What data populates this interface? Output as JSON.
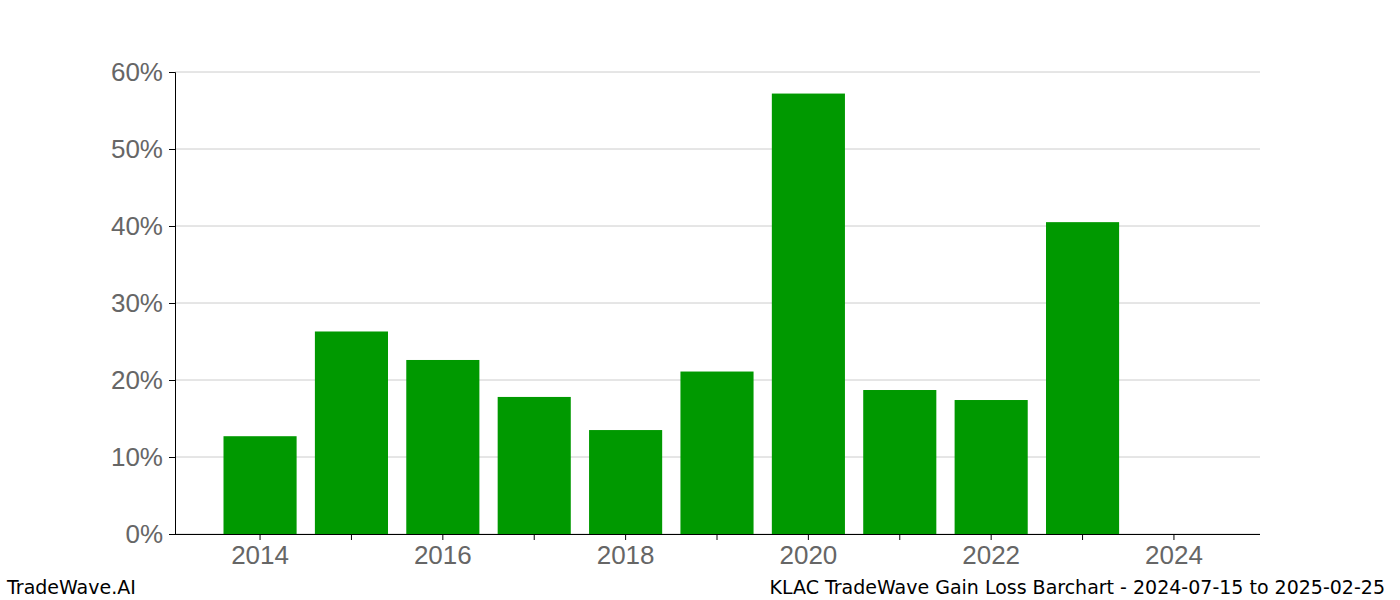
{
  "chart_data": {
    "type": "bar",
    "title": "KLAC TradeWave Gain Loss Barchart - 2024-07-15 to 2025-02-25",
    "annotations": [
      "TradeWave.AI"
    ],
    "categories": [
      "2014",
      null,
      "2016",
      null,
      "2018",
      null,
      "2020",
      null,
      "2022",
      null,
      "2024"
    ],
    "values": [
      12.7,
      26.3,
      22.6,
      17.8,
      13.5,
      21.1,
      57.2,
      18.7,
      17.4,
      40.5,
      null
    ],
    "color": "#009900",
    "ylim": [
      0,
      60
    ],
    "yticks": [
      {
        "value": 0,
        "label": "0%"
      },
      {
        "value": 10,
        "label": "10%"
      },
      {
        "value": 20,
        "label": "20%"
      },
      {
        "value": 30,
        "label": "30%"
      },
      {
        "value": 40,
        "label": "40%"
      },
      {
        "value": 50,
        "label": "50%"
      },
      {
        "value": 60,
        "label": "60%"
      }
    ],
    "grid": true
  }
}
